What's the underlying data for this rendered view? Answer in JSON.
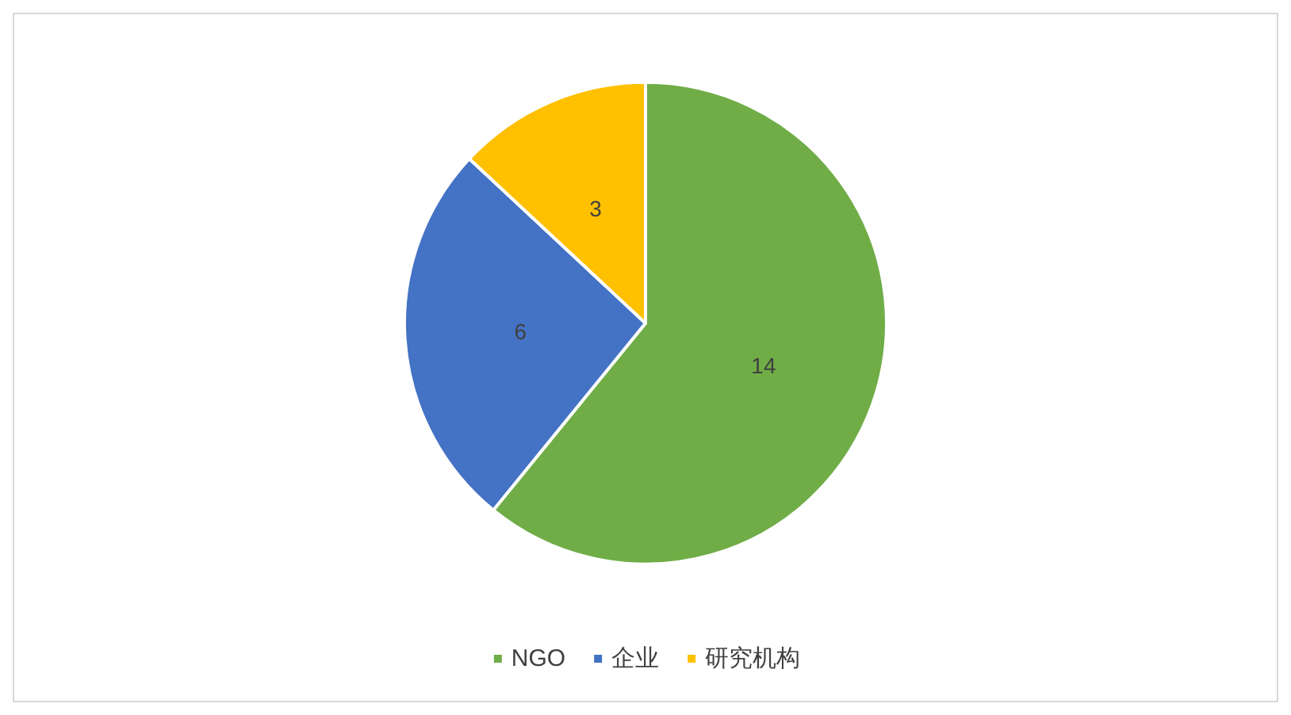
{
  "chart_data": {
    "type": "pie",
    "categories": [
      "NGO",
      "企业",
      "研究机构"
    ],
    "values": [
      14,
      6,
      3
    ],
    "colors": [
      "#70ad47",
      "#4472c4",
      "#ffc000"
    ],
    "data_labels": true,
    "legend": "bottom"
  }
}
